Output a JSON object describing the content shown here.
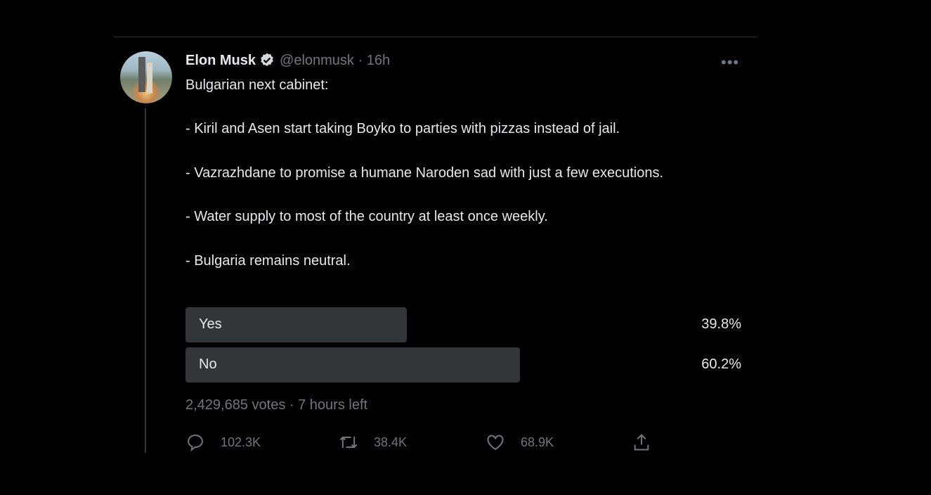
{
  "tweet": {
    "author_name": "Elon Musk",
    "handle": "@elonmusk",
    "separator": " · ",
    "time": "16h",
    "verified": true,
    "text": "Bulgarian next cabinet:\n\n- Kiril and Asen start taking Boyko to parties with pizzas instead of jail.\n\n- Vazrazhdane to promise a humane Naroden sad with just a few executions.\n\n- Water supply to most of the country at least once weekly.\n\n- Bulgaria remains neutral.",
    "poll": {
      "options": [
        {
          "label": "Yes",
          "percent_text": "39.8%",
          "percent": 39.8
        },
        {
          "label": "No",
          "percent_text": "60.2%",
          "percent": 60.2
        }
      ],
      "summary": "2,429,685 votes · 7 hours left"
    },
    "actions": {
      "replies": "102.3K",
      "retweets": "38.4K",
      "likes": "68.9K"
    }
  },
  "colors": {
    "background": "#000000",
    "text": "#e7e9ea",
    "muted": "#71767b",
    "poll_bar": "#333639"
  }
}
